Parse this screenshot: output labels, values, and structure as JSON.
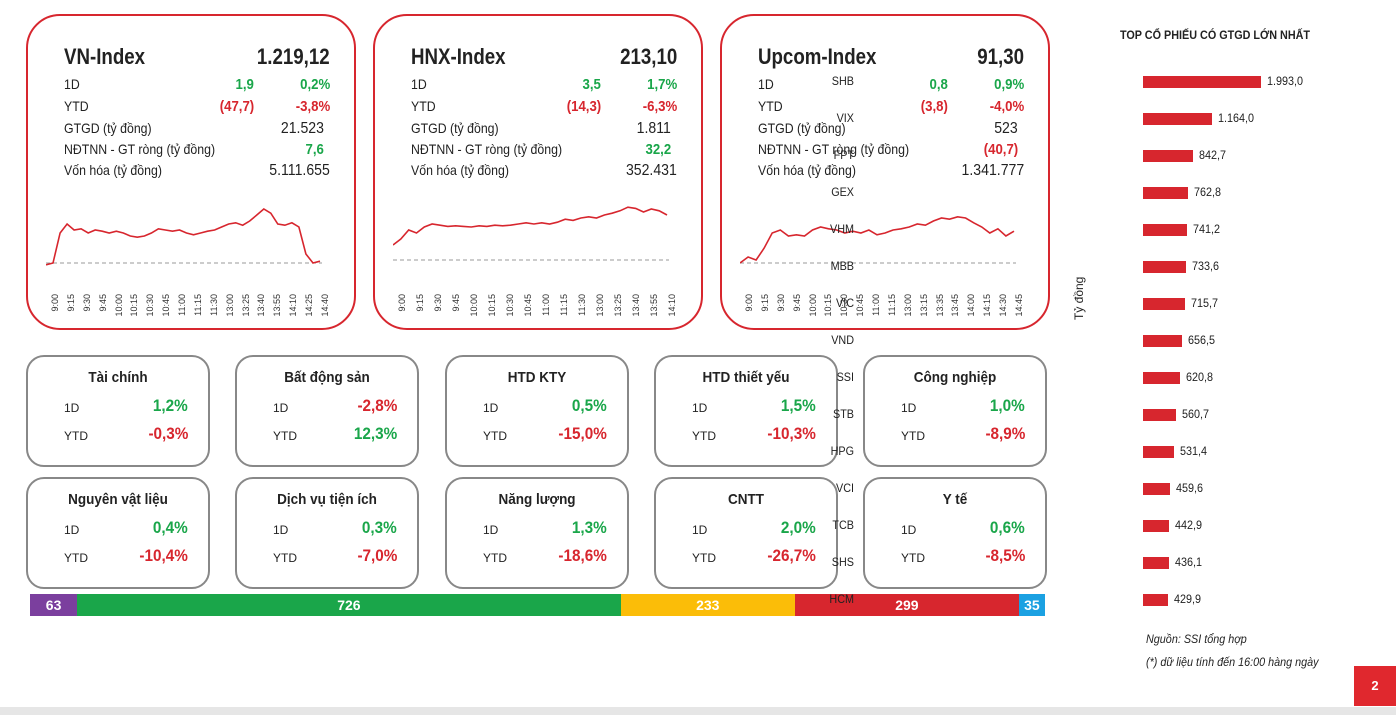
{
  "indices": [
    {
      "name": "VN-Index",
      "value": "1.219,12",
      "d1": {
        "label": "1D",
        "chg": "1,9",
        "pct": "0,2%",
        "chg_color": "green",
        "pct_color": "green"
      },
      "ytd": {
        "label": "YTD",
        "chg": "(47,7)",
        "pct": "-3,8%",
        "chg_color": "red",
        "pct_color": "red"
      },
      "gtgd": {
        "label": "GTGD (tỷ đồng)",
        "value": "21.523"
      },
      "ndtnn": {
        "label": "NĐTNN - GT ròng (tỷ đồng)",
        "value": "7,6",
        "color": "green"
      },
      "vonhoa": {
        "label": "Vốn hóa (tỷ đồng)",
        "value": "5.111.655"
      },
      "ticks": [
        "9:00",
        "9:15",
        "9:30",
        "9:45",
        "10:00",
        "10:15",
        "10:30",
        "10:45",
        "11:00",
        "11:15",
        "11:30",
        "13:00",
        "13:25",
        "13:40",
        "13:55",
        "14:10",
        "14:25",
        "14:40"
      ],
      "series": [
        0.02,
        0.05,
        0.55,
        0.7,
        0.6,
        0.62,
        0.55,
        0.6,
        0.58,
        0.55,
        0.58,
        0.55,
        0.5,
        0.48,
        0.5,
        0.55,
        0.62,
        0.6,
        0.58,
        0.6,
        0.55,
        0.52,
        0.55,
        0.58,
        0.6,
        0.65,
        0.7,
        0.72,
        0.68,
        0.75,
        0.85,
        0.95,
        0.88,
        0.7,
        0.68,
        0.72,
        0.65,
        0.2,
        0.05,
        0.08
      ],
      "baseline": 0.05
    },
    {
      "name": "HNX-Index",
      "value": "213,10",
      "d1": {
        "label": "1D",
        "chg": "3,5",
        "pct": "1,7%",
        "chg_color": "green",
        "pct_color": "green"
      },
      "ytd": {
        "label": "YTD",
        "chg": "(14,3)",
        "pct": "-6,3%",
        "chg_color": "red",
        "pct_color": "red"
      },
      "gtgd": {
        "label": "GTGD (tỷ đồng)",
        "value": "1.811"
      },
      "ndtnn": {
        "label": "NĐTNN - GT ròng (tỷ đồng)",
        "value": "32,2",
        "color": "green"
      },
      "vonhoa": {
        "label": "Vốn hóa (tỷ đồng)",
        "value": "352.431"
      },
      "ticks": [
        "9:00",
        "9:15",
        "9:30",
        "9:45",
        "10:00",
        "10:15",
        "10:30",
        "10:45",
        "11:00",
        "11:15",
        "11:30",
        "13:00",
        "13:25",
        "13:40",
        "13:55",
        "14:10"
      ],
      "series": [
        0.35,
        0.45,
        0.6,
        0.55,
        0.65,
        0.7,
        0.68,
        0.66,
        0.67,
        0.66,
        0.65,
        0.67,
        0.66,
        0.68,
        0.67,
        0.68,
        0.7,
        0.72,
        0.7,
        0.72,
        0.7,
        0.73,
        0.78,
        0.76,
        0.8,
        0.82,
        0.8,
        0.85,
        0.88,
        0.92,
        0.98,
        0.96,
        0.9,
        0.95,
        0.92,
        0.85
      ],
      "baseline": 0.1
    },
    {
      "name": "Upcom-Index",
      "value": "91,30",
      "d1": {
        "label": "1D",
        "chg": "0,8",
        "pct": "0,9%",
        "chg_color": "green",
        "pct_color": "green"
      },
      "ytd": {
        "label": "YTD",
        "chg": "(3,8)",
        "pct": "-4,0%",
        "chg_color": "red",
        "pct_color": "red"
      },
      "gtgd": {
        "label": "GTGD (tỷ đồng)",
        "value": "523"
      },
      "ndtnn": {
        "label": "NĐTNN - GT ròng (tỷ đồng)",
        "value": "(40,7)",
        "color": "red"
      },
      "vonhoa": {
        "label": "Vốn hóa (tỷ đồng)",
        "value": "1.341.777"
      },
      "ticks": [
        "9:00",
        "9:15",
        "9:30",
        "9:45",
        "10:00",
        "10:15",
        "10:30",
        "10:45",
        "11:00",
        "11:15",
        "13:00",
        "13:15",
        "13:35",
        "13:45",
        "14:00",
        "14:15",
        "14:30",
        "14:45"
      ],
      "series": [
        0.05,
        0.15,
        0.1,
        0.3,
        0.55,
        0.6,
        0.5,
        0.52,
        0.5,
        0.6,
        0.65,
        0.62,
        0.6,
        0.55,
        0.58,
        0.55,
        0.6,
        0.52,
        0.55,
        0.6,
        0.62,
        0.65,
        0.7,
        0.68,
        0.75,
        0.8,
        0.78,
        0.82,
        0.8,
        0.72,
        0.65,
        0.55,
        0.62,
        0.5,
        0.58
      ],
      "baseline": 0.05
    }
  ],
  "sectors": [
    {
      "name": "Tài chính",
      "d1": "1,2%",
      "ytd": "-0,3%",
      "d1c": "green",
      "ytdc": "red"
    },
    {
      "name": "Bất động sản",
      "d1": "-2,8%",
      "ytd": "12,3%",
      "d1c": "red",
      "ytdc": "green"
    },
    {
      "name": "HTD KTY",
      "d1": "0,5%",
      "ytd": "-15,0%",
      "d1c": "green",
      "ytdc": "red"
    },
    {
      "name": "HTD thiết yếu",
      "d1": "1,5%",
      "ytd": "-10,3%",
      "d1c": "green",
      "ytdc": "red"
    },
    {
      "name": "Công nghiệp",
      "d1": "1,0%",
      "ytd": "-8,9%",
      "d1c": "green",
      "ytdc": "red"
    },
    {
      "name": "Nguyên vật liệu",
      "d1": "0,4%",
      "ytd": "-10,4%",
      "d1c": "green",
      "ytdc": "red"
    },
    {
      "name": "Dịch vụ tiện ích",
      "d1": "0,3%",
      "ytd": "-7,0%",
      "d1c": "green",
      "ytdc": "red"
    },
    {
      "name": "Năng lượng",
      "d1": "1,3%",
      "ytd": "-18,6%",
      "d1c": "green",
      "ytdc": "red"
    },
    {
      "name": "CNTT",
      "d1": "2,0%",
      "ytd": "-26,7%",
      "d1c": "green",
      "ytdc": "red"
    },
    {
      "name": "Y tế",
      "d1": "0,6%",
      "ytd": "-8,5%",
      "d1c": "green",
      "ytdc": "red"
    }
  ],
  "sector_labels": {
    "d1": "1D",
    "ytd": "YTD"
  },
  "breadth": [
    {
      "value": 63,
      "label": "63",
      "color": "#7b3f9e"
    },
    {
      "value": 726,
      "label": "726",
      "color": "#1aa64a"
    },
    {
      "value": 233,
      "label": "233",
      "color": "#fbbd08"
    },
    {
      "value": 299,
      "label": "299",
      "color": "#d7262e"
    },
    {
      "value": 35,
      "label": "35",
      "color": "#1ba1e2"
    }
  ],
  "chart_data": {
    "type": "bar",
    "title": "TOP CỔ PHIẾU CÓ GTGD LỚN NHẤT",
    "ylabel": "Tỷ đồng",
    "categories": [
      "SHB",
      "VIX",
      "FPT",
      "GEX",
      "VHM",
      "MBB",
      "VIC",
      "VND",
      "SSI",
      "STB",
      "HPG",
      "VCI",
      "TCB",
      "SHS",
      "HCM"
    ],
    "values": [
      1993.0,
      1164.0,
      842.7,
      762.8,
      741.2,
      733.6,
      715.7,
      656.5,
      620.8,
      560.7,
      531.4,
      459.6,
      442.9,
      436.1,
      429.9
    ],
    "value_labels": [
      "1.993,0",
      "1.164,0",
      "842,7",
      "762,8",
      "741,2",
      "733,6",
      "715,7",
      "656,5",
      "620,8",
      "560,7",
      "531,4",
      "459,6",
      "442,9",
      "436,1",
      "429,9"
    ],
    "orientation": "horizontal",
    "bar_color": "#d7262e"
  },
  "footer": {
    "source": "Nguồn: SSI tổng hợp",
    "note": "(*) dữ liệu tính đến 16:00 hàng ngày",
    "page": "2"
  },
  "colors": {
    "green": "#1aa64a",
    "red": "#d7262e"
  }
}
